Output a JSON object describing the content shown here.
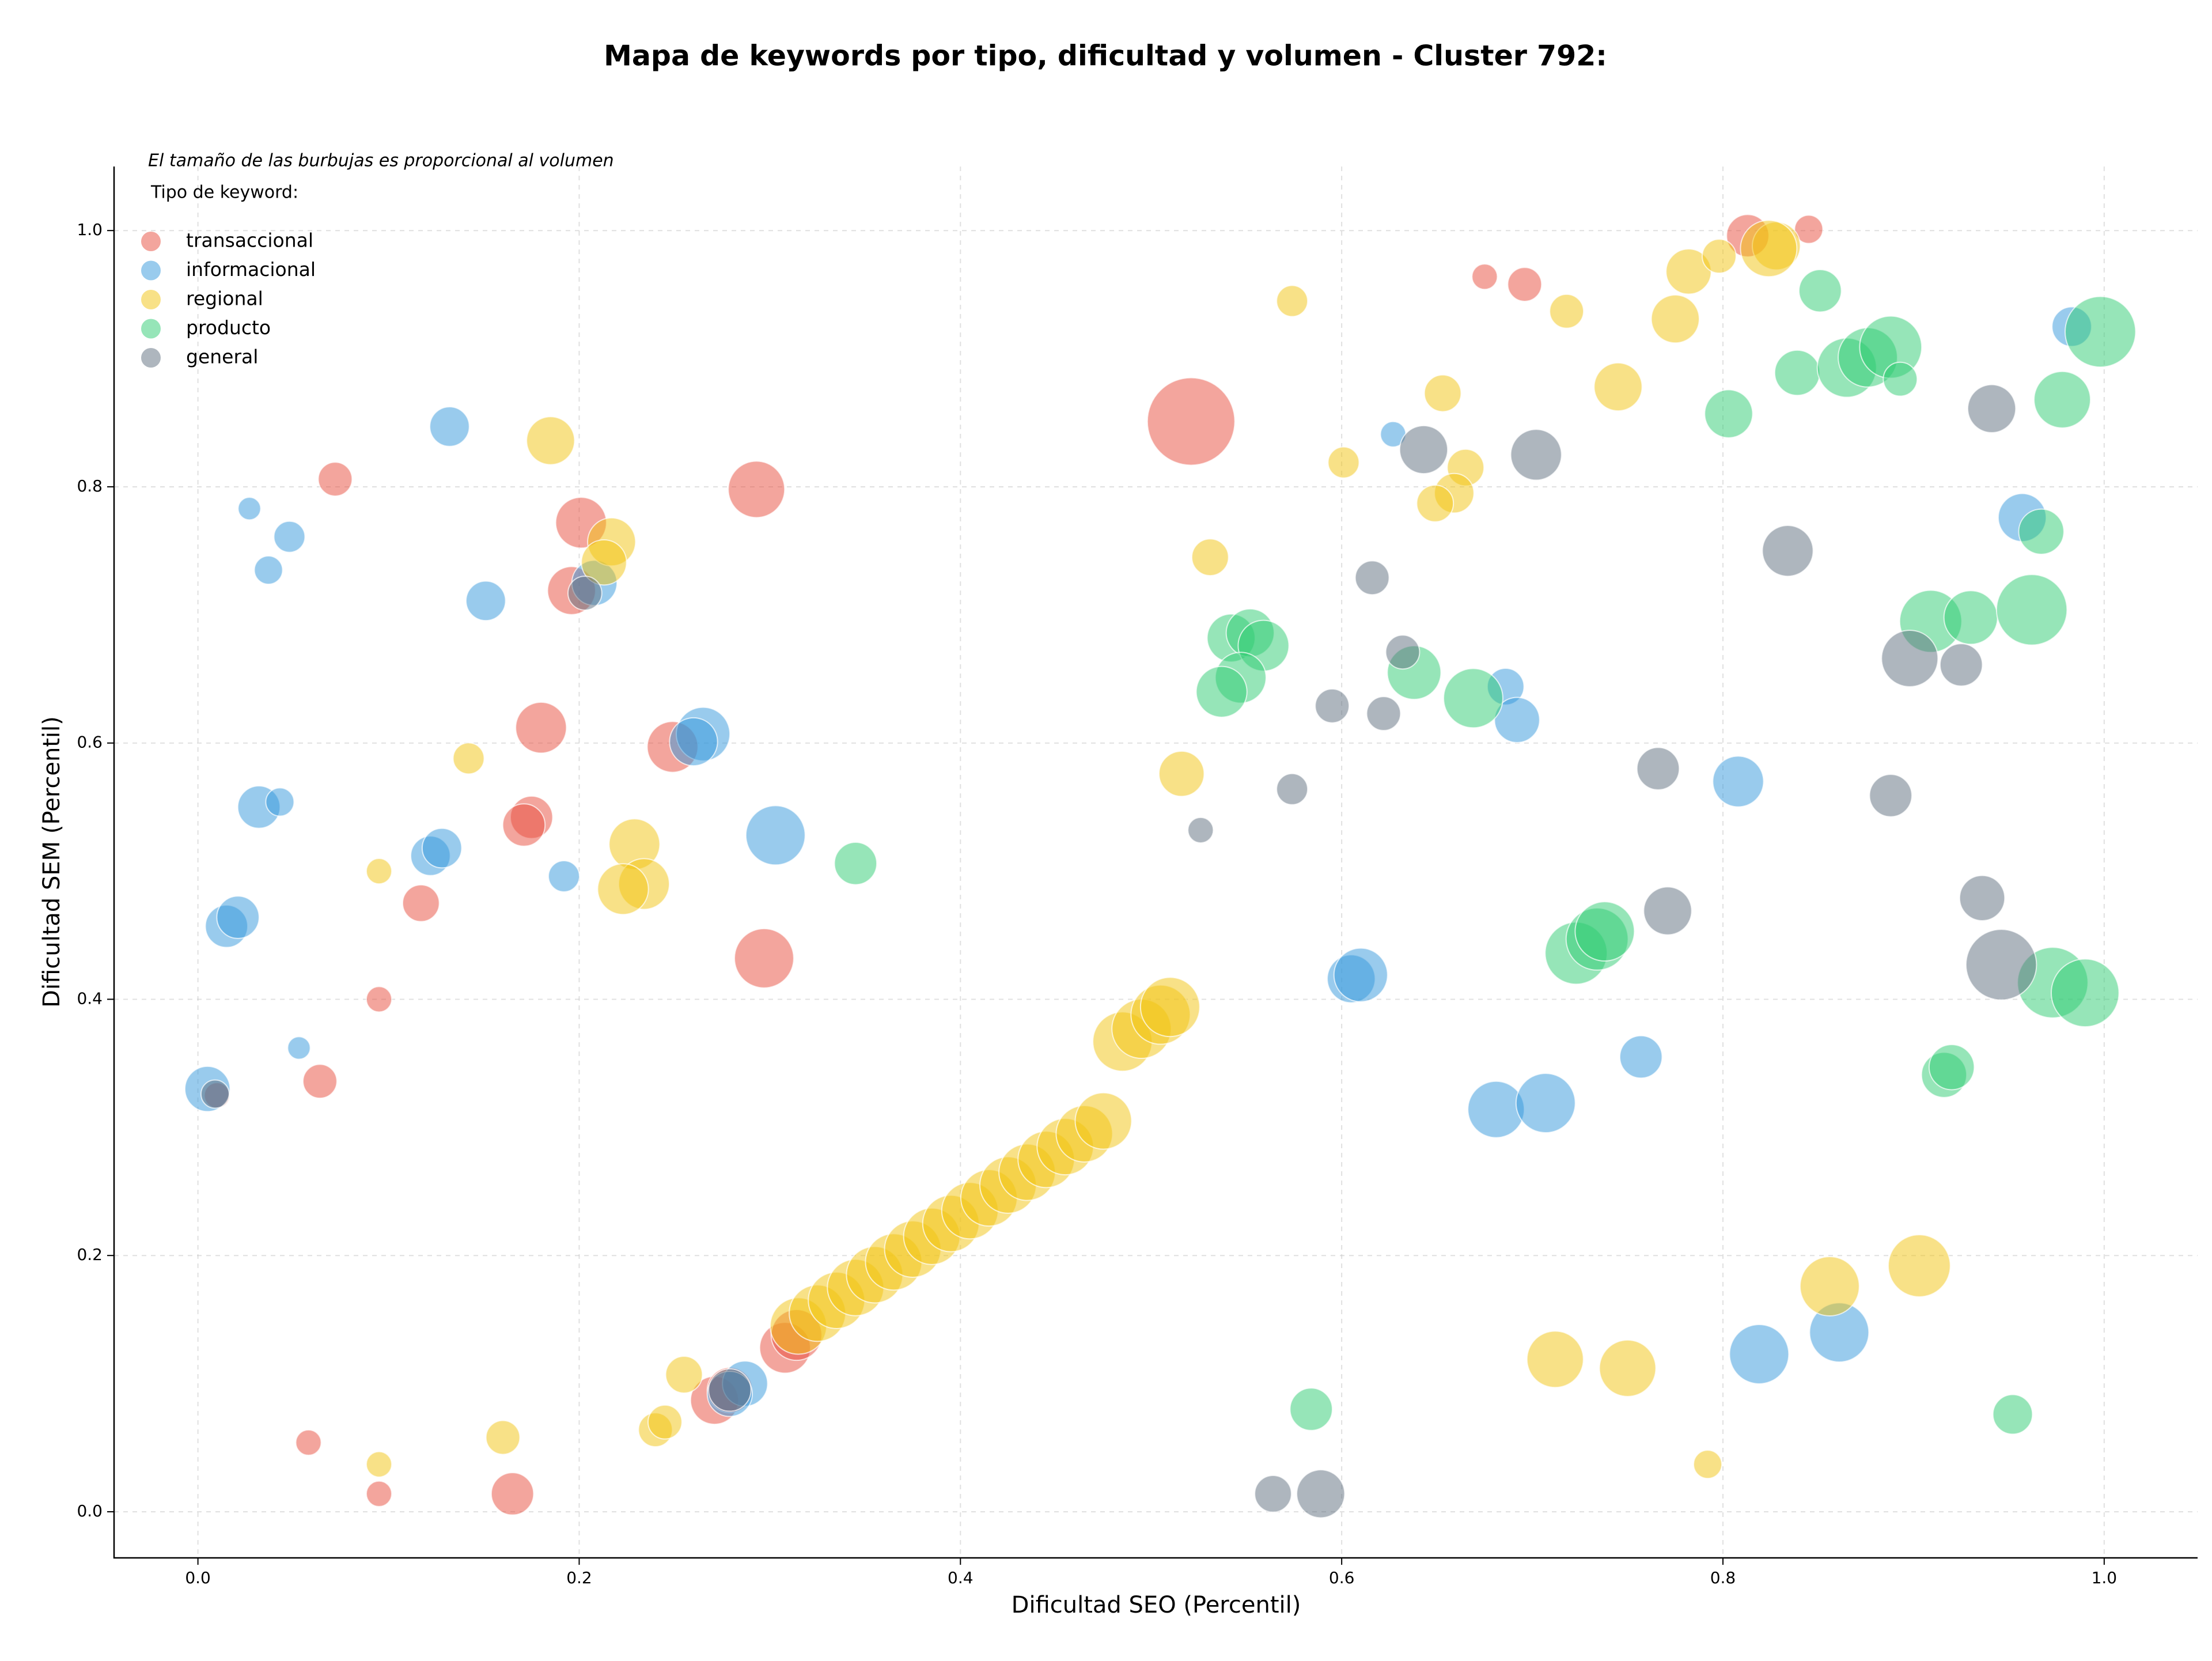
{
  "chart_data": {
    "type": "bubble",
    "title": "Mapa de keywords por tipo, dificultad y volumen - Cluster 792:",
    "note": "El tamaño de las burbujas es proporcional al volumen",
    "legend_title": "Tipo de keyword:",
    "legend": "upper left",
    "grid": true,
    "x_label": "Dificultad SEO (Percentil)",
    "y_label": "Dificultad SEM (Percentil)",
    "xlim": [
      -0.044,
      1.049
    ],
    "ylim": [
      -0.036,
      1.05
    ],
    "xticks": [
      {
        "value": 0,
        "label": "0.0"
      },
      0.2,
      0.4,
      0.6,
      0.8,
      {
        "value": 1,
        "label": "1.0"
      }
    ],
    "yticks": [
      {
        "value": 0,
        "label": "0.0"
      },
      0.2,
      0.4,
      0.6,
      0.8,
      {
        "value": 1,
        "label": "1.0"
      }
    ],
    "series": [
      {
        "name": "transaccional",
        "color": "#e74c3c",
        "x": [
          0.072,
          0.201,
          0.196,
          0.293,
          0.18,
          0.249,
          0.175,
          0.171,
          0.117,
          0.095,
          0.064,
          0.01,
          0.297,
          0.521,
          0.675,
          0.696,
          0.813,
          0.845,
          0.058,
          0.095,
          0.165,
          0.271,
          0.279,
          0.308,
          0.314
        ],
        "y": [
          0.806,
          0.772,
          0.719,
          0.798,
          0.612,
          0.597,
          0.542,
          0.536,
          0.475,
          0.4,
          0.336,
          0.325,
          0.432,
          0.851,
          0.964,
          0.958,
          0.996,
          1.001,
          0.054,
          0.014,
          0.014,
          0.087,
          0.095,
          0.128,
          0.138
        ],
        "sizes": [
          144,
          324,
          289,
          400,
          324,
          324,
          225,
          225,
          169,
          81,
          144,
          81,
          441,
          961,
          81,
          144,
          225,
          100,
          81,
          81,
          225,
          289,
          256,
          324,
          324
        ]
      },
      {
        "name": "informacional",
        "color": "#3498db",
        "x": [
          0.132,
          0.027,
          0.048,
          0.037,
          0.151,
          0.208,
          0.265,
          0.26,
          0.032,
          0.043,
          0.122,
          0.128,
          0.192,
          0.303,
          0.015,
          0.021,
          0.053,
          0.005,
          0.287,
          0.279,
          0.627,
          0.605,
          0.61,
          0.686,
          0.692,
          0.808,
          0.757,
          0.681,
          0.707,
          0.957,
          0.983,
          0.819,
          0.861
        ],
        "y": [
          0.847,
          0.783,
          0.761,
          0.735,
          0.711,
          0.725,
          0.607,
          0.601,
          0.55,
          0.554,
          0.512,
          0.518,
          0.496,
          0.528,
          0.457,
          0.464,
          0.362,
          0.33,
          0.1,
          0.092,
          0.841,
          0.416,
          0.419,
          0.644,
          0.618,
          0.57,
          0.355,
          0.314,
          0.319,
          0.776,
          0.925,
          0.123,
          0.14
        ],
        "sizes": [
          196,
          64,
          121,
          100,
          196,
          256,
          361,
          289,
          225,
          100,
          196,
          196,
          121,
          441,
          225,
          225,
          64,
          256,
          256,
          256,
          81,
          289,
          361,
          169,
          256,
          324,
          225,
          400,
          441,
          289,
          196,
          441,
          441
        ]
      },
      {
        "name": "regional",
        "color": "#f1c40f",
        "x": [
          0.185,
          0.217,
          0.213,
          0.142,
          0.095,
          0.229,
          0.234,
          0.223,
          0.574,
          0.531,
          0.516,
          0.601,
          0.653,
          0.665,
          0.659,
          0.649,
          0.718,
          0.745,
          0.775,
          0.782,
          0.798,
          0.828,
          0.824,
          0.856,
          0.903,
          0.712,
          0.75,
          0.792,
          0.16,
          0.24,
          0.245,
          0.255,
          0.095,
          0.315,
          0.325,
          0.335,
          0.345,
          0.355,
          0.365,
          0.375,
          0.385,
          0.395,
          0.405,
          0.415,
          0.425,
          0.435,
          0.445,
          0.455,
          0.465,
          0.475,
          0.485,
          0.495,
          0.505,
          0.51
        ],
        "y": [
          0.836,
          0.757,
          0.741,
          0.588,
          0.5,
          0.521,
          0.49,
          0.486,
          0.945,
          0.745,
          0.576,
          0.819,
          0.873,
          0.815,
          0.795,
          0.787,
          0.937,
          0.878,
          0.931,
          0.968,
          0.98,
          0.988,
          0.986,
          0.176,
          0.192,
          0.119,
          0.112,
          0.037,
          0.058,
          0.064,
          0.07,
          0.107,
          0.037,
          0.145,
          0.155,
          0.165,
          0.175,
          0.185,
          0.195,
          0.205,
          0.215,
          0.225,
          0.235,
          0.245,
          0.255,
          0.265,
          0.275,
          0.285,
          0.295,
          0.305,
          0.367,
          0.377,
          0.388,
          0.394
        ],
        "sizes": [
          289,
          289,
          256,
          121,
          81,
          324,
          324,
          324,
          121,
          169,
          256,
          121,
          169,
          169,
          196,
          169,
          144,
          289,
          289,
          256,
          144,
          289,
          400,
          441,
          484,
          400,
          400,
          100,
          144,
          144,
          144,
          169,
          81,
          400,
          400,
          400,
          400,
          400,
          400,
          400,
          400,
          400,
          400,
          400,
          400,
          400,
          400,
          400,
          400,
          400,
          441,
          441,
          441,
          441
        ]
      },
      {
        "name": "producto",
        "color": "#2ecc71",
        "x": [
          0.345,
          0.542,
          0.552,
          0.559,
          0.547,
          0.537,
          0.638,
          0.669,
          0.584,
          0.851,
          0.839,
          0.803,
          0.865,
          0.876,
          0.888,
          0.893,
          0.978,
          0.998,
          0.967,
          0.909,
          0.93,
          0.962,
          0.723,
          0.734,
          0.738,
          0.916,
          0.92,
          0.973,
          0.99,
          0.952
        ],
        "y": [
          0.506,
          0.682,
          0.686,
          0.676,
          0.651,
          0.64,
          0.655,
          0.635,
          0.08,
          0.953,
          0.889,
          0.857,
          0.893,
          0.901,
          0.909,
          0.884,
          0.868,
          0.921,
          0.765,
          0.695,
          0.698,
          0.704,
          0.436,
          0.447,
          0.453,
          0.341,
          0.347,
          0.413,
          0.405,
          0.076
        ],
        "sizes": [
          225,
          289,
          289,
          324,
          324,
          324,
          361,
          441,
          225,
          225,
          256,
          289,
          441,
          441,
          484,
          144,
          400,
          625,
          256,
          484,
          361,
          625,
          484,
          484,
          441,
          256,
          256,
          625,
          576,
          196
        ]
      },
      {
        "name": "general",
        "color": "#5d6d7e",
        "x": [
          0.643,
          0.702,
          0.616,
          0.632,
          0.595,
          0.622,
          0.574,
          0.526,
          0.834,
          0.941,
          0.898,
          0.925,
          0.766,
          0.771,
          0.888,
          0.936,
          0.946,
          0.564,
          0.589,
          0.009,
          0.203,
          0.279
        ],
        "y": [
          0.829,
          0.825,
          0.729,
          0.671,
          0.629,
          0.623,
          0.564,
          0.532,
          0.75,
          0.861,
          0.666,
          0.661,
          0.58,
          0.469,
          0.559,
          0.479,
          0.427,
          0.014,
          0.014,
          0.326,
          0.717,
          0.095
        ],
        "sizes": [
          289,
          324,
          144,
          144,
          144,
          144,
          121,
          81,
          324,
          289,
          400,
          225,
          225,
          289,
          225,
          256,
          625,
          169,
          289,
          100,
          144,
          225
        ]
      }
    ]
  }
}
